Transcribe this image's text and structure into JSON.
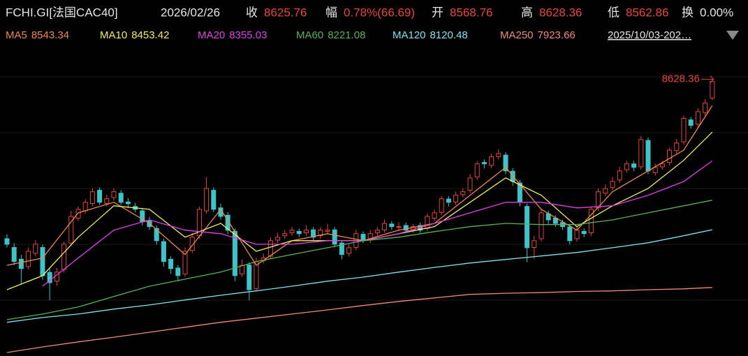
{
  "chart_data": {
    "type": "candlestick",
    "symbol": "FCHI.GI[法国CAC40]",
    "date": "2026/02/26",
    "quote_labels": {
      "close": "收",
      "change": "幅",
      "open": "开",
      "high": "高",
      "low": "低",
      "turnover": "换"
    },
    "change": "0.78%(66.69)",
    "turnover": "0.00%",
    "range": "2025/10/03-202…",
    "up_color": "#e8453c",
    "down_color": "#3ec3c9",
    "ylim": [
      7690,
      8737
    ],
    "open": [
      8090,
      8060,
      8020,
      7995,
      8040,
      8060,
      7975,
      7945,
      7985,
      8075,
      8160,
      8185,
      8210,
      8255,
      8210,
      8230,
      8245,
      8215,
      8200,
      8185,
      8150,
      8125,
      8080,
      8020,
      7990,
      7970,
      8050,
      8100,
      8185,
      8255,
      8195,
      8170,
      8115,
      7970,
      8000,
      7920,
      8015,
      8030,
      8085,
      8100,
      8110,
      8115,
      8110,
      8120,
      8100,
      8115,
      8120,
      8075,
      8040,
      8060,
      8105,
      8085,
      8110,
      8120,
      8140,
      8130,
      8135,
      8120,
      8135,
      8125,
      8160,
      8180,
      8225,
      8215,
      8240,
      8255,
      8300,
      8350,
      8340,
      8370,
      8375,
      8320,
      8280,
      8200,
      8060,
      8090,
      8175,
      8160,
      8145,
      8130,
      8090,
      8115,
      8110,
      8195,
      8245,
      8265,
      8290,
      8325,
      8345,
      8335,
      8425,
      8315,
      8335,
      8350,
      8390,
      8420,
      8495,
      8480,
      8520,
      8568.76
    ],
    "high": [
      8105,
      8075,
      8035,
      8060,
      8085,
      8070,
      7990,
      7990,
      8080,
      8185,
      8200,
      8225,
      8262,
      8265,
      8240,
      8262,
      8255,
      8228,
      8212,
      8195,
      8165,
      8135,
      8090,
      8030,
      8000,
      8060,
      8110,
      8200,
      8300,
      8265,
      8210,
      8180,
      8125,
      8020,
      8010,
      8025,
      8040,
      8095,
      8110,
      8120,
      8130,
      8125,
      8135,
      8130,
      8130,
      8140,
      8130,
      8085,
      8070,
      8120,
      8115,
      8120,
      8130,
      8155,
      8150,
      8145,
      8145,
      8140,
      8145,
      8175,
      8190,
      8235,
      8235,
      8250,
      8262,
      8310,
      8355,
      8360,
      8380,
      8395,
      8385,
      8330,
      8290,
      8210,
      8100,
      8190,
      8185,
      8170,
      8155,
      8140,
      8130,
      8125,
      8200,
      8262,
      8275,
      8300,
      8335,
      8355,
      8355,
      8440,
      8435,
      8345,
      8355,
      8400,
      8430,
      8510,
      8505,
      8535,
      8565,
      8628.36
    ],
    "low": [
      8060,
      8000,
      7935,
      7985,
      8030,
      7950,
      7880,
      7930,
      7975,
      8065,
      8150,
      8175,
      8200,
      8205,
      8200,
      8220,
      8205,
      8195,
      8180,
      8135,
      8120,
      8070,
      7995,
      7970,
      7945,
      7960,
      8040,
      8090,
      8175,
      8180,
      8155,
      8105,
      7945,
      7960,
      7880,
      7910,
      8005,
      8020,
      8075,
      8090,
      8100,
      8095,
      8100,
      8085,
      8090,
      8105,
      8060,
      8020,
      8030,
      8050,
      8075,
      8075,
      8100,
      8110,
      8120,
      8120,
      8110,
      8110,
      8110,
      8115,
      8150,
      8170,
      8200,
      8205,
      8230,
      8245,
      8290,
      8330,
      8330,
      8360,
      8310,
      8270,
      8200,
      8010,
      8020,
      8080,
      8140,
      8130,
      8120,
      8070,
      8080,
      8095,
      8100,
      8185,
      8235,
      8255,
      8280,
      8315,
      8320,
      8325,
      8310,
      8305,
      8325,
      8340,
      8380,
      8410,
      8465,
      8470,
      8510,
      8562.86
    ],
    "close": [
      8071,
      8012,
      7988,
      8047,
      8071,
      7964,
      7940,
      7976,
      8071,
      8166,
      8190,
      8214,
      8250,
      8214,
      8226,
      8250,
      8214,
      8209,
      8190,
      8147,
      8131,
      8083,
      8012,
      7988,
      7964,
      8047,
      8095,
      8190,
      8261,
      8190,
      8166,
      8119,
      7964,
      7999,
      7916,
      8012,
      8024,
      8083,
      8095,
      8107,
      8119,
      8107,
      8119,
      8095,
      8119,
      8119,
      8071,
      8036,
      8059,
      8107,
      8083,
      8107,
      8119,
      8142,
      8131,
      8131,
      8119,
      8131,
      8119,
      8166,
      8178,
      8226,
      8214,
      8238,
      8250,
      8297,
      8345,
      8345,
      8369,
      8380,
      8321,
      8285,
      8214,
      8059,
      8083,
      8178,
      8154,
      8142,
      8131,
      8083,
      8119,
      8107,
      8190,
      8250,
      8261,
      8285,
      8321,
      8345,
      8333,
      8428,
      8321,
      8333,
      8345,
      8392,
      8416,
      8500,
      8476,
      8523,
      8552,
      8625.76
    ],
    "ma_index": [
      0,
      5,
      10,
      15,
      20,
      25,
      30,
      35,
      40,
      45,
      50,
      55,
      60,
      65,
      70,
      75,
      80,
      85,
      90,
      95,
      99
    ],
    "series": [
      {
        "name": "MA5",
        "color": "#f0894a",
        "values": [
          7999,
          8024,
          8178,
          8214,
          8142,
          8036,
          8190,
          7999,
          8083,
          8107,
          8083,
          8119,
          8142,
          8238,
          8333,
          8190,
          8119,
          8250,
          8321,
          8392,
          8543.34
        ]
      },
      {
        "name": "MA10",
        "color": "#f2ef5c",
        "values": [
          7916,
          7964,
          8095,
          8202,
          8190,
          8095,
          8142,
          8047,
          8083,
          8083,
          8083,
          8107,
          8131,
          8214,
          8297,
          8238,
          8131,
          8202,
          8261,
          8357,
          8453.42
        ]
      },
      {
        "name": "MA20",
        "color": "#e040e8",
        "values": [
          null,
          7928,
          8024,
          8119,
          8154,
          8119,
          8107,
          8071,
          8071,
          8083,
          8083,
          8107,
          8142,
          8178,
          8214,
          8214,
          8195,
          8202,
          8238,
          8285,
          8355.03
        ]
      },
      {
        "name": "MA60",
        "color": "#56b35a",
        "values": [
          7814,
          7833,
          7857,
          7893,
          7928,
          7952,
          7976,
          8012,
          8036,
          8059,
          8083,
          8095,
          8114,
          8131,
          8142,
          8138,
          8138,
          8154,
          8178,
          8202,
          8221.08
        ]
      },
      {
        "name": "MA120",
        "color": "#7fe3f0",
        "values": [
          7805,
          7821,
          7833,
          7850,
          7864,
          7881,
          7897,
          7912,
          7928,
          7945,
          7959,
          7976,
          7992,
          8007,
          8019,
          8031,
          8043,
          8059,
          8076,
          8100,
          8120.48
        ]
      },
      {
        "name": "MA250",
        "color": "#f08a78",
        "values": [
          7702,
          7721,
          7738,
          7754,
          7771,
          7788,
          7805,
          7819,
          7833,
          7847,
          7862,
          7876,
          7888,
          7900,
          7904,
          7906,
          7910,
          7912,
          7916,
          7919,
          7923.66
        ]
      }
    ]
  }
}
